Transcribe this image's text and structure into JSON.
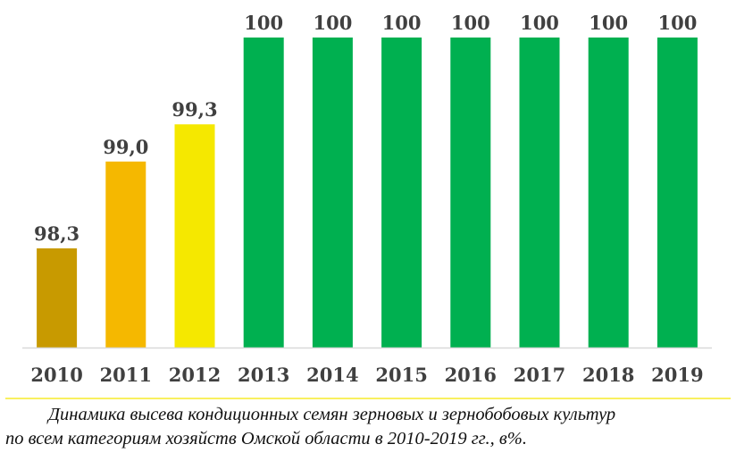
{
  "chart_data": {
    "type": "bar",
    "categories": [
      "2010",
      "2011",
      "2012",
      "2013",
      "2014",
      "2015",
      "2016",
      "2017",
      "2018",
      "2019"
    ],
    "values": [
      98.3,
      99.0,
      99.3,
      100,
      100,
      100,
      100,
      100,
      100,
      100
    ],
    "value_labels": [
      "98,3",
      "99,0",
      "99,3",
      "100",
      "100",
      "100",
      "100",
      "100",
      "100",
      "100"
    ],
    "bar_colors": [
      "#C89A00",
      "#F5B800",
      "#F5E800",
      "#00B050",
      "#00B050",
      "#00B050",
      "#00B050",
      "#00B050",
      "#00B050",
      "#00B050"
    ],
    "ylim": [
      97.5,
      100
    ],
    "grid": false,
    "legend": "none",
    "axis_color": "#D9D9D9",
    "separator_color": "#F5E800"
  },
  "caption": {
    "line1": "Динамика высева кондиционных семян зерновых и зернобобовых культур",
    "line2": "по всем категориям хозяйств Омской области в 2010-2019 гг., в%."
  }
}
